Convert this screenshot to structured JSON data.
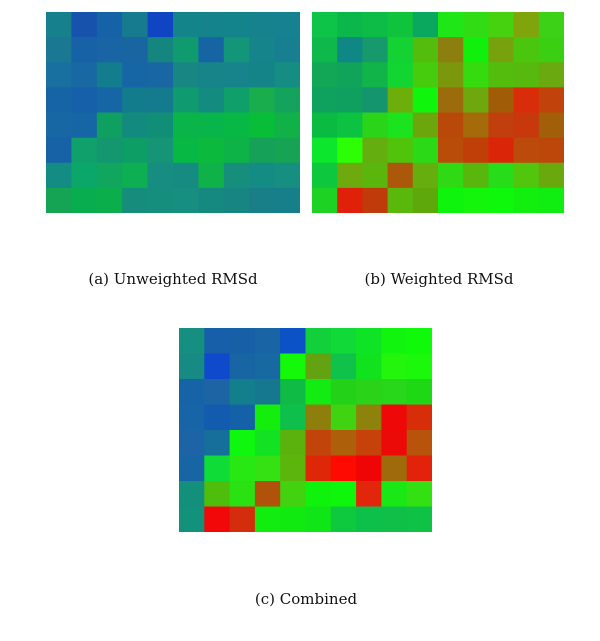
{
  "captions": {
    "a": "(a) Unweighted RMSd",
    "b": "(b) Weighted RMSd",
    "c": "(c) Combined"
  },
  "chart_data": [
    {
      "type": "heatmap",
      "title": "(a) Unweighted RMSd",
      "rows": 8,
      "cols": 10,
      "colors": [
        [
          "#17808d",
          "#1752ad",
          "#1662a6",
          "#177b90",
          "#0f45c2",
          "#13848a",
          "#14838b",
          "#13848b",
          "#15828d",
          "#168290"
        ],
        [
          "#1a7893",
          "#1762a6",
          "#1864a4",
          "#1965a2",
          "#14857f",
          "#0f9b6f",
          "#1764a4",
          "#129578",
          "#16848b",
          "#177f8f"
        ],
        [
          "#1770a0",
          "#1768a3",
          "#127d8d",
          "#1665a5",
          "#1866a2",
          "#188683",
          "#17848a",
          "#17848c",
          "#158488",
          "#168d82"
        ],
        [
          "#1664a6",
          "#1660a9",
          "#1665a4",
          "#127c8c",
          "#147b8e",
          "#0f9b6f",
          "#148b7f",
          "#0f9f6a",
          "#19ad4d",
          "#14a35c"
        ],
        [
          "#1767a4",
          "#1665a4",
          "#0fa061",
          "#138a7e",
          "#108e76",
          "#09b449",
          "#08b54a",
          "#07b844",
          "#08bd37",
          "#10b248"
        ],
        [
          "#1762a6",
          "#0fa06b",
          "#14976e",
          "#0c9e64",
          "#169576",
          "#07b944",
          "#0bba3d",
          "#0db347",
          "#16a159",
          "#17a354"
        ],
        [
          "#138c84",
          "#0aa66a",
          "#10a65e",
          "#0daf52",
          "#178c80",
          "#158b82",
          "#0fb249",
          "#178e7c",
          "#138d83",
          "#168f80"
        ],
        [
          "#14a454",
          "#07ad4f",
          "#0aae4b",
          "#168c7c",
          "#158e7e",
          "#168e80",
          "#15887f",
          "#178582",
          "#187f88",
          "#177f8a"
        ]
      ]
    },
    {
      "type": "heatmap",
      "title": "(b) Weighted RMSd",
      "rows": 8,
      "cols": 10,
      "colors": [
        [
          "#0ec448",
          "#0bb74b",
          "#0cbc47",
          "#0fc43c",
          "#0aa75e",
          "#1ee617",
          "#30dc13",
          "#47d210",
          "#80a40c",
          "#3cd117"
        ],
        [
          "#0eb84a",
          "#0f8785",
          "#169a6b",
          "#14d233",
          "#54bc0c",
          "#8d7f0f",
          "#11ef0d",
          "#78a20d",
          "#4bc60e",
          "#3acf12"
        ],
        [
          "#11a756",
          "#10a45a",
          "#10b448",
          "#12d531",
          "#47cb0d",
          "#7b980c",
          "#35da0f",
          "#53bc0c",
          "#57b80d",
          "#6ba910"
        ],
        [
          "#0fa25f",
          "#0fa05f",
          "#14956e",
          "#6caf0b",
          "#0ff50b",
          "#9b6b0c",
          "#6fa80c",
          "#a15c08",
          "#d92d09",
          "#c1420a"
        ],
        [
          "#09bc41",
          "#0bc341",
          "#29d419",
          "#1be41e",
          "#6ba70c",
          "#b84908",
          "#a56a0a",
          "#c03f0c",
          "#c7380d",
          "#a25f0a"
        ],
        [
          "#0ce62c",
          "#2cff05",
          "#65ae10",
          "#4fc40a",
          "#2cd916",
          "#b84c08",
          "#c03f08",
          "#da2508",
          "#bc4a0a",
          "#bd470b"
        ],
        [
          "#0dc83d",
          "#6eaa0e",
          "#5ab60c",
          "#ac580a",
          "#66ae0d",
          "#2fda14",
          "#59b60d",
          "#27dc18",
          "#51c60d",
          "#6aa90e"
        ],
        [
          "#1ed224",
          "#e1200a",
          "#bf3b0a",
          "#5ab70b",
          "#5fa80c",
          "#0ff40d",
          "#13f50b",
          "#0ef80b",
          "#12ee0e",
          "#0fee10"
        ]
      ]
    },
    {
      "type": "heatmap",
      "title": "(c) Combined",
      "rows": 8,
      "cols": 10,
      "colors": [
        [
          "#168e80",
          "#175fa8",
          "#1760a7",
          "#1864a5",
          "#0a52c5",
          "#11d03a",
          "#11d938",
          "#0fe326",
          "#11f50e",
          "#10f90a"
        ],
        [
          "#168a83",
          "#0e4acb",
          "#1765a2",
          "#166aa1",
          "#14f80a",
          "#63a210",
          "#0ec24a",
          "#10e31e",
          "#23f50c",
          "#1af80b"
        ],
        [
          "#1763a7",
          "#1d64a4",
          "#147f8c",
          "#15788f",
          "#10bb45",
          "#13ec12",
          "#23d218",
          "#2ad318",
          "#28d61a",
          "#1fd815"
        ],
        [
          "#1764a6",
          "#125bae",
          "#1461a7",
          "#13ee0d",
          "#0ebf4c",
          "#8e7e0b",
          "#3fd312",
          "#8d830c",
          "#ee0808",
          "#d72d09"
        ],
        [
          "#1c64a6",
          "#166e9b",
          "#0ef70e",
          "#13e222",
          "#5cb20c",
          "#c2440a",
          "#ad5f09",
          "#c6420a",
          "#ec0a08",
          "#b8530b"
        ],
        [
          "#1765a4",
          "#0fdc36",
          "#27e813",
          "#35e113",
          "#5cb50d",
          "#dd2707",
          "#ff0a03",
          "#ef0505",
          "#9e6a0c",
          "#e3220b"
        ],
        [
          "#13907c",
          "#4ebd0c",
          "#2ae111",
          "#b0520a",
          "#42d20f",
          "#0ef20c",
          "#0ef60c",
          "#e2260c",
          "#1ae716",
          "#33e012"
        ],
        [
          "#12917b",
          "#f3080a",
          "#d32d0b",
          "#10ed0f",
          "#11ea10",
          "#10e617",
          "#0ec83d",
          "#0cc04a",
          "#0fbf48",
          "#0fc246"
        ]
      ]
    }
  ]
}
